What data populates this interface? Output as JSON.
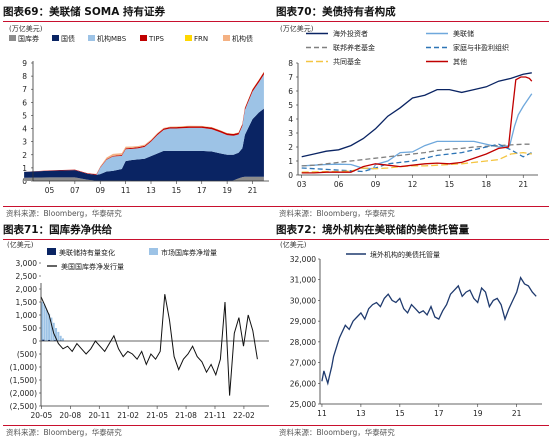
{
  "panels": [
    {
      "title_num": "图表69：",
      "title_text": "美联储 SOMA 持有证券",
      "unit": "(万亿美元)",
      "source": "资料来源：Bloomberg，华泰研究"
    },
    {
      "title_num": "图表70：",
      "title_text": "美债持有者构成",
      "unit": "(万亿美元)",
      "source": "资料来源：Bloomberg，华泰研究"
    },
    {
      "title_num": "图表71：",
      "title_text": "国库券净供给",
      "unit": "(亿美元)",
      "source": "资料来源：Bloomberg，华泰研究"
    },
    {
      "title_num": "图表72：",
      "title_text": "境外机构在美联储的美债托管量",
      "unit": "(亿美元)",
      "source": "资料来源：Bloomberg，华泰研究"
    }
  ],
  "chart_data": [
    {
      "type": "area",
      "title": "美联储 SOMA 持有证券",
      "ylabel": "(万亿美元)",
      "ylim": [
        0,
        9
      ],
      "yticks": [
        0,
        1,
        2,
        3,
        4,
        5,
        6,
        7,
        8,
        9
      ],
      "xticks": [
        "05",
        "07",
        "09",
        "11",
        "13",
        "15",
        "17",
        "19",
        "21"
      ],
      "x": [
        2003,
        2005,
        2007,
        2008,
        2008.7,
        2009,
        2009.5,
        2010,
        2010.7,
        2011,
        2011.5,
        2012,
        2012.5,
        2013,
        2013.5,
        2014,
        2014.5,
        2015,
        2016,
        2017,
        2017.8,
        2018.5,
        2019,
        2019.5,
        2019.9,
        2020.2,
        2020.4,
        2020.7,
        2021,
        2021.5,
        2021.9
      ],
      "series": [
        {
          "name": "国库券",
          "color": "#8c8c8c",
          "values": [
            0.25,
            0.28,
            0.28,
            0.1,
            0.02,
            0.02,
            0.02,
            0.02,
            0.02,
            0.02,
            0.0,
            0.0,
            0.0,
            0.0,
            0.0,
            0.0,
            0.0,
            0.0,
            0.0,
            0.0,
            0.0,
            0.0,
            0.0,
            0.05,
            0.2,
            0.3,
            0.32,
            0.32,
            0.32,
            0.32,
            0.32
          ]
        },
        {
          "name": "国债",
          "color": "#0a2463",
          "values": [
            0.45,
            0.5,
            0.55,
            0.45,
            0.45,
            0.5,
            0.7,
            0.75,
            0.9,
            1.5,
            1.6,
            1.65,
            1.7,
            1.9,
            2.1,
            2.3,
            2.3,
            2.3,
            2.3,
            2.3,
            2.25,
            2.1,
            2.0,
            1.95,
            1.95,
            2.2,
            3.2,
            3.8,
            4.4,
            4.9,
            5.2
          ]
        },
        {
          "name": "机构MBS",
          "color": "#9dc3e6",
          "values": [
            0.0,
            0.0,
            0.0,
            0.0,
            0.0,
            0.5,
            0.9,
            1.1,
            1.0,
            0.9,
            0.85,
            0.85,
            0.9,
            1.1,
            1.4,
            1.6,
            1.7,
            1.7,
            1.75,
            1.75,
            1.7,
            1.6,
            1.5,
            1.45,
            1.4,
            1.7,
            1.9,
            2.0,
            2.1,
            2.3,
            2.6
          ]
        },
        {
          "name": "TIPS",
          "color": "#c00000",
          "values": [
            0.0,
            0.03,
            0.04,
            0.04,
            0.05,
            0.05,
            0.05,
            0.05,
            0.06,
            0.07,
            0.08,
            0.08,
            0.09,
            0.09,
            0.1,
            0.1,
            0.11,
            0.11,
            0.12,
            0.12,
            0.13,
            0.13,
            0.13,
            0.13,
            0.13,
            0.14,
            0.15,
            0.16,
            0.17,
            0.18,
            0.19
          ]
        },
        {
          "name": "FRN",
          "color": "#ffd700",
          "values": [
            0.0,
            0.0,
            0.0,
            0.0,
            0.0,
            0.0,
            0.0,
            0.0,
            0.0,
            0.0,
            0.0,
            0.0,
            0.0,
            0.0,
            0.0,
            0.0,
            0.0,
            0.01,
            0.01,
            0.01,
            0.01,
            0.01,
            0.01,
            0.01,
            0.01,
            0.01,
            0.01,
            0.01,
            0.01,
            0.01,
            0.01
          ]
        },
        {
          "name": "机构债",
          "color": "#f4b183",
          "values": [
            0.0,
            0.0,
            0.0,
            0.0,
            0.02,
            0.05,
            0.12,
            0.15,
            0.15,
            0.13,
            0.1,
            0.09,
            0.08,
            0.07,
            0.06,
            0.05,
            0.04,
            0.04,
            0.03,
            0.02,
            0.02,
            0.02,
            0.02,
            0.02,
            0.02,
            0.02,
            0.02,
            0.02,
            0.02,
            0.02,
            0.02
          ]
        }
      ]
    },
    {
      "type": "line",
      "title": "美债持有者构成",
      "ylabel": "(万亿美元)",
      "ylim": [
        0,
        8
      ],
      "yticks": [
        0,
        1,
        2,
        3,
        4,
        5,
        6,
        7,
        8
      ],
      "xticks": [
        "03",
        "06",
        "09",
        "12",
        "15",
        "18",
        "21"
      ],
      "series": [
        {
          "name": "海外投资者",
          "color": "#0a2463",
          "dash": "",
          "x": [
            2003,
            2004,
            2005,
            2006,
            2007,
            2008,
            2009,
            2010,
            2011,
            2012,
            2013,
            2014,
            2015,
            2016,
            2017,
            2018,
            2019,
            2020,
            2021,
            2021.7
          ],
          "values": [
            1.3,
            1.5,
            1.7,
            1.8,
            2.1,
            2.6,
            3.3,
            4.2,
            4.8,
            5.5,
            5.7,
            6.1,
            6.1,
            5.9,
            6.1,
            6.3,
            6.7,
            6.9,
            7.2,
            7.3
          ]
        },
        {
          "name": "美联储",
          "color": "#6fa8dc",
          "dash": "",
          "x": [
            2003,
            2004,
            2005,
            2006,
            2007,
            2008,
            2008.8,
            2009,
            2010,
            2011,
            2012,
            2013,
            2014,
            2015,
            2016,
            2017,
            2018,
            2019,
            2019.9,
            2020.3,
            2020.6,
            2021,
            2021.7
          ],
          "values": [
            0.65,
            0.7,
            0.75,
            0.77,
            0.75,
            0.48,
            0.45,
            0.75,
            1.0,
            1.6,
            1.65,
            2.1,
            2.4,
            2.4,
            2.4,
            2.4,
            2.2,
            2.0,
            2.1,
            3.5,
            4.3,
            4.9,
            5.8
          ]
        },
        {
          "name": "联邦养老基金",
          "color": "#808080",
          "dash": "5,3",
          "x": [
            2003,
            2004,
            2005,
            2006,
            2007,
            2008,
            2009,
            2010,
            2011,
            2012,
            2013,
            2014,
            2015,
            2016,
            2017,
            2018,
            2019,
            2020,
            2021,
            2021.7
          ],
          "values": [
            0.65,
            0.7,
            0.8,
            0.9,
            1.0,
            1.1,
            1.2,
            1.3,
            1.4,
            1.5,
            1.6,
            1.75,
            1.85,
            1.9,
            2.0,
            2.05,
            2.1,
            2.15,
            2.2,
            2.2
          ]
        },
        {
          "name": "家庭与非盈利组织",
          "color": "#2e75b6",
          "dash": "5,3",
          "x": [
            2003,
            2004,
            2005,
            2006,
            2007,
            2008,
            2009,
            2010,
            2011,
            2012,
            2013,
            2014,
            2015,
            2016,
            2017,
            2018,
            2019,
            2020,
            2021,
            2021.7
          ],
          "values": [
            0.5,
            0.45,
            0.4,
            0.35,
            0.3,
            0.25,
            0.5,
            0.8,
            0.9,
            1.0,
            1.2,
            1.4,
            1.5,
            1.6,
            1.8,
            2.0,
            2.2,
            1.8,
            1.3,
            1.6
          ]
        },
        {
          "name": "共同基金",
          "color": "#f4c542",
          "dash": "7,3",
          "x": [
            2003,
            2004,
            2005,
            2006,
            2007,
            2008,
            2009,
            2010,
            2011,
            2012,
            2013,
            2014,
            2015,
            2016,
            2017,
            2018,
            2019,
            2020,
            2021,
            2021.7
          ],
          "values": [
            0.2,
            0.22,
            0.25,
            0.25,
            0.28,
            0.5,
            0.45,
            0.5,
            0.6,
            0.65,
            0.65,
            0.7,
            0.75,
            0.8,
            0.9,
            1.0,
            1.1,
            1.5,
            1.6,
            1.5
          ]
        },
        {
          "name": "其他",
          "color": "#c00000",
          "dash": "",
          "x": [
            2003,
            2004,
            2005,
            2006,
            2007,
            2008,
            2009,
            2010,
            2011,
            2012,
            2013,
            2014,
            2015,
            2016,
            2017,
            2018,
            2019,
            2019.8,
            2020.1,
            2020.4,
            2020.8,
            2021.2,
            2021.5,
            2021.7
          ],
          "values": [
            0.15,
            0.15,
            0.2,
            0.2,
            0.2,
            0.6,
            0.8,
            0.7,
            0.6,
            0.7,
            0.8,
            0.85,
            0.8,
            0.9,
            1.2,
            1.5,
            1.9,
            2.0,
            4.5,
            6.8,
            7.0,
            7.0,
            6.9,
            6.7
          ]
        }
      ]
    },
    {
      "type": "bar",
      "title": "国库券净供给",
      "ylabel": "(亿美元)",
      "ylim": [
        -2500,
        3000
      ],
      "yticks": [
        -2500,
        -2000,
        -1500,
        -1000,
        -500,
        0,
        500,
        1000,
        1500,
        2000,
        2500,
        3000
      ],
      "ytick_labels": [
        "(2,500)",
        "(2,000)",
        "(1,500)",
        "(1,000)",
        "(500)",
        "0",
        "500",
        "1,000",
        "1,500",
        "2,000",
        "2,500",
        "3,000"
      ],
      "xticks": [
        "20-05",
        "20-08",
        "20-11",
        "21-02",
        "21-05",
        "21-08",
        "21-11",
        "22-02"
      ],
      "x_range": [
        2020.33,
        2022.3
      ],
      "series": [
        {
          "name": "美联储持有量变化",
          "color": "#0a2463",
          "type": "bar"
        },
        {
          "name": "市场国库券净增量",
          "color": "#9dc3e6",
          "type": "bar"
        },
        {
          "name": "美国国库券净发行量",
          "color": "#111111",
          "type": "line"
        }
      ],
      "market_bars": {
        "x": [
          2020.34,
          2020.36,
          2020.38,
          2020.4,
          2020.42,
          2020.44,
          2020.46,
          2020.48,
          2020.5,
          2020.52
        ],
        "values": [
          1500,
          1400,
          1200,
          1050,
          900,
          700,
          500,
          350,
          200,
          100
        ]
      },
      "fed_bars": {
        "x": [
          2020.35,
          2020.4,
          2020.45,
          2020.5
        ],
        "values": [
          50,
          40,
          30,
          20
        ]
      },
      "net_line": {
        "x": [
          2020.33,
          2020.36,
          2020.4,
          2020.44,
          2020.48,
          2020.52,
          2020.56,
          2020.6,
          2020.64,
          2020.68,
          2020.72,
          2020.76,
          2020.8,
          2020.84,
          2020.88,
          2020.92,
          2020.96,
          2021.0,
          2021.04,
          2021.08,
          2021.12,
          2021.16,
          2021.2,
          2021.24,
          2021.28,
          2021.32,
          2021.36,
          2021.4,
          2021.44,
          2021.48,
          2021.52,
          2021.56,
          2021.6,
          2021.64,
          2021.68,
          2021.72,
          2021.76,
          2021.8,
          2021.84,
          2021.88,
          2021.92,
          2021.96,
          2022.0,
          2022.04,
          2022.08,
          2022.12,
          2022.16,
          2022.2
        ],
        "values": [
          1700,
          1400,
          1000,
          300,
          -100,
          -300,
          -200,
          -400,
          -100,
          -300,
          -500,
          -300,
          0,
          -200,
          -400,
          -100,
          200,
          -300,
          -600,
          -400,
          -500,
          -700,
          -400,
          -900,
          -500,
          -700,
          -400,
          1800,
          800,
          -600,
          -1100,
          -700,
          -500,
          -200,
          -600,
          -800,
          -1200,
          -900,
          -1300,
          -700,
          1500,
          -2100,
          300,
          900,
          -200,
          1000,
          400,
          -700
        ]
      }
    },
    {
      "type": "line",
      "title": "境外机构在美联储的美债托管量",
      "ylabel": "(亿美元)",
      "ylim": [
        25000,
        32000
      ],
      "yticks": [
        25000,
        26000,
        27000,
        28000,
        29000,
        30000,
        31000,
        32000
      ],
      "ytick_labels": [
        "25,000",
        "26,000",
        "27,000",
        "28,000",
        "29,000",
        "30,000",
        "31,000",
        "32,000"
      ],
      "xticks": [
        "11",
        "13",
        "15",
        "17",
        "19",
        "21"
      ],
      "x_range": [
        2010.9,
        2022.3
      ],
      "series": [
        {
          "name": "境外机构的美债托管量",
          "color": "#1f3a6e",
          "x": [
            2011.0,
            2011.1,
            2011.2,
            2011.3,
            2011.4,
            2011.5,
            2011.6,
            2011.7,
            2011.8,
            2011.9,
            2012.0,
            2012.2,
            2012.4,
            2012.6,
            2012.8,
            2013.0,
            2013.2,
            2013.4,
            2013.6,
            2013.8,
            2014.0,
            2014.2,
            2014.4,
            2014.6,
            2014.8,
            2015.0,
            2015.2,
            2015.4,
            2015.6,
            2015.8,
            2016.0,
            2016.2,
            2016.4,
            2016.6,
            2016.8,
            2017.0,
            2017.2,
            2017.4,
            2017.6,
            2017.8,
            2018.0,
            2018.2,
            2018.4,
            2018.6,
            2018.8,
            2019.0,
            2019.2,
            2019.4,
            2019.6,
            2019.8,
            2020.0,
            2020.2,
            2020.4,
            2020.6,
            2020.8,
            2021.0,
            2021.2,
            2021.4,
            2021.6,
            2021.8,
            2022.0
          ],
          "values": [
            26100,
            26600,
            26300,
            26000,
            26400,
            26800,
            27300,
            27600,
            27900,
            28200,
            28400,
            28800,
            28600,
            29000,
            29200,
            29400,
            29100,
            29600,
            29800,
            29900,
            29700,
            30100,
            30300,
            30000,
            29900,
            30100,
            29600,
            29400,
            29800,
            29600,
            29400,
            29500,
            29300,
            29700,
            29200,
            29100,
            29500,
            29800,
            30300,
            30500,
            30700,
            30200,
            30400,
            30500,
            30100,
            29900,
            30600,
            30400,
            29700,
            30000,
            30100,
            29800,
            29100,
            29600,
            30000,
            30400,
            31100,
            30800,
            30700,
            30400,
            30200
          ]
        }
      ]
    }
  ]
}
